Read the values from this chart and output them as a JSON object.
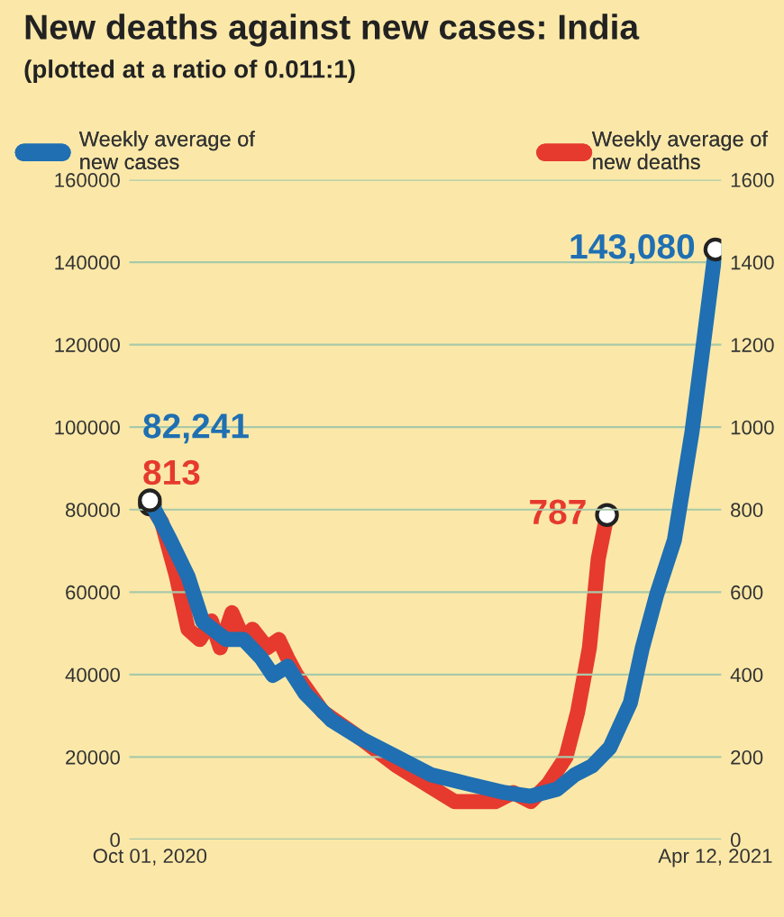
{
  "chart_data": {
    "type": "line",
    "title": "New deaths against new cases: India",
    "subtitle": "(plotted at a ratio of 0.011:1)",
    "series": [
      {
        "name": "Weekly average of\nnew cases",
        "color": "#1f6fb2",
        "x": [
          "2020-10-01",
          "2020-10-08",
          "2020-10-14",
          "2020-10-19",
          "2020-10-27",
          "2020-11-02",
          "2020-11-08",
          "2020-11-12",
          "2020-11-17",
          "2020-11-23",
          "2020-12-02",
          "2020-12-12",
          "2020-12-24",
          "2021-01-05",
          "2021-01-17",
          "2021-01-30",
          "2021-02-08",
          "2021-02-17",
          "2021-02-23",
          "2021-03-01",
          "2021-03-07",
          "2021-03-14",
          "2021-03-18",
          "2021-03-23",
          "2021-03-29",
          "2021-04-04",
          "2021-04-08",
          "2021-04-12"
        ],
        "values": [
          82241,
          72600,
          63800,
          52900,
          48500,
          48500,
          44000,
          39800,
          42000,
          35400,
          28900,
          24500,
          20100,
          15700,
          13600,
          11400,
          10500,
          12200,
          15700,
          17900,
          22300,
          33200,
          46300,
          59500,
          72600,
          98800,
          120700,
          143080
        ],
        "value_labels": [
          "82,241",
          null,
          null,
          null,
          null,
          null,
          null,
          null,
          null,
          null,
          null,
          null,
          null,
          null,
          null,
          null,
          null,
          null,
          null,
          null,
          null,
          null,
          null,
          null,
          null,
          null,
          null,
          "143,080"
        ]
      },
      {
        "name": "Weekly average of\nnew deaths",
        "color": "#e63a2e",
        "axis": "y2",
        "x": [
          "2020-10-01",
          "2020-10-05",
          "2020-10-10",
          "2020-10-14",
          "2020-10-18",
          "2020-10-22",
          "2020-10-25",
          "2020-10-29",
          "2020-11-02",
          "2020-11-05",
          "2020-11-10",
          "2020-11-14",
          "2020-11-17",
          "2020-11-20",
          "2020-11-29",
          "2020-12-12",
          "2020-12-24",
          "2021-01-05",
          "2021-01-13",
          "2021-01-19",
          "2021-01-27",
          "2021-02-02",
          "2021-02-08",
          "2021-02-14",
          "2021-02-20",
          "2021-02-24",
          "2021-02-28",
          "2021-03-03",
          "2021-03-06"
        ],
        "values": [
          813,
          770,
          640,
          510,
          485,
          530,
          465,
          550,
          485,
          510,
          465,
          485,
          440,
          400,
          310,
          245,
          180,
          127,
          92,
          92,
          92,
          114,
          92,
          135,
          200,
          310,
          465,
          680,
          787
        ],
        "value_labels": [
          "813",
          null,
          null,
          null,
          null,
          null,
          null,
          null,
          null,
          null,
          null,
          null,
          null,
          null,
          null,
          null,
          null,
          null,
          null,
          null,
          null,
          null,
          null,
          null,
          null,
          null,
          null,
          null,
          "787"
        ]
      }
    ],
    "xlim": [
      "2020-09-24",
      "2021-04-14"
    ],
    "xticks": [
      {
        "value": "2020-10-01",
        "label": "Oct 01, 2020"
      },
      {
        "value": "2021-04-12",
        "label": "Apr 12, 2021"
      }
    ],
    "ylim": [
      0,
      160000
    ],
    "yticks": [
      0,
      20000,
      40000,
      60000,
      80000,
      100000,
      120000,
      140000,
      160000
    ],
    "y2lim": [
      0,
      1600
    ],
    "y2ticks": [
      0,
      200,
      400,
      600,
      800,
      1000,
      1200,
      1400,
      1600
    ],
    "grid": "y",
    "legend": "top",
    "line_style": "solid"
  }
}
